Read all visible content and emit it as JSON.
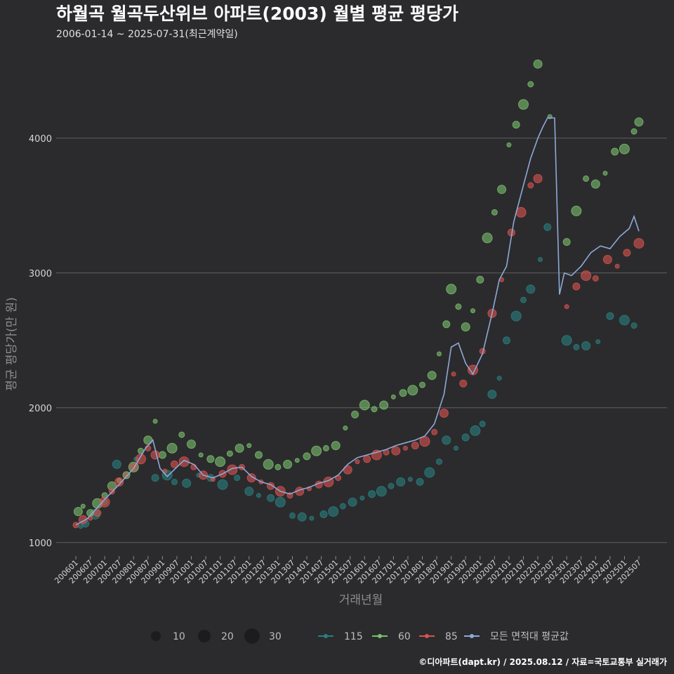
{
  "chart_data": {
    "type": "scatter",
    "title": "하월곡 월곡두산위브 아파트(2003) 월별 평균 평당가",
    "subtitle": "2006-01-14 ~ 2025-07-31(최근계약일)",
    "xlabel": "거래년월",
    "ylabel": "평균 평당가(만 원)",
    "caption": "©디아파트(dapt.kr) / 2025.08.12 / 자료=국토교통부 실거래가",
    "ylim": [
      900,
      4650
    ],
    "y_ticks": [
      1000,
      2000,
      3000,
      4000
    ],
    "x_range": [
      "2006-01",
      "2025-07"
    ],
    "x_tick_labels": [
      "200601",
      "200607",
      "200701",
      "200707",
      "200801",
      "200807",
      "200901",
      "200907",
      "201001",
      "201007",
      "201101",
      "201107",
      "201201",
      "201207",
      "201301",
      "201307",
      "201401",
      "201407",
      "201501",
      "201507",
      "201601",
      "201607",
      "201701",
      "201707",
      "201801",
      "201807",
      "201901",
      "201907",
      "202001",
      "202007",
      "202101",
      "202107",
      "202201",
      "202207",
      "202301",
      "202307",
      "202401",
      "202407",
      "202501",
      "202507"
    ],
    "grid": "horizontal",
    "size_legend": {
      "values": [
        10,
        20,
        30
      ]
    },
    "legend_placement": "bottom",
    "series": [
      {
        "name": "115",
        "color": "#2a7f7f",
        "points": [
          [
            "2006-03",
            1120
          ],
          [
            "2006-05",
            1140
          ],
          [
            "2006-09",
            1210
          ],
          [
            "2007-01",
            1300
          ],
          [
            "2007-06",
            1580
          ],
          [
            "2008-02",
            1620
          ],
          [
            "2008-10",
            1480
          ],
          [
            "2009-03",
            1500
          ],
          [
            "2009-06",
            1450
          ],
          [
            "2009-11",
            1440
          ],
          [
            "2010-04",
            1500
          ],
          [
            "2010-09",
            1480
          ],
          [
            "2011-02",
            1430
          ],
          [
            "2011-08",
            1480
          ],
          [
            "2012-01",
            1380
          ],
          [
            "2012-05",
            1350
          ],
          [
            "2012-10",
            1330
          ],
          [
            "2013-02",
            1300
          ],
          [
            "2013-07",
            1200
          ],
          [
            "2013-11",
            1190
          ],
          [
            "2014-03",
            1180
          ],
          [
            "2014-08",
            1210
          ],
          [
            "2014-12",
            1230
          ],
          [
            "2015-04",
            1270
          ],
          [
            "2015-08",
            1300
          ],
          [
            "2015-12",
            1330
          ],
          [
            "2016-04",
            1360
          ],
          [
            "2016-08",
            1380
          ],
          [
            "2016-12",
            1420
          ],
          [
            "2017-04",
            1450
          ],
          [
            "2017-08",
            1470
          ],
          [
            "2017-12",
            1450
          ],
          [
            "2018-04",
            1520
          ],
          [
            "2018-08",
            1600
          ],
          [
            "2018-11",
            1760
          ],
          [
            "2019-03",
            1700
          ],
          [
            "2019-07",
            1780
          ],
          [
            "2019-11",
            1830
          ],
          [
            "2020-02",
            1880
          ],
          [
            "2020-06",
            2100
          ],
          [
            "2020-09",
            2220
          ],
          [
            "2020-12",
            2500
          ],
          [
            "2021-04",
            2680
          ],
          [
            "2021-07",
            2800
          ],
          [
            "2021-10",
            2880
          ],
          [
            "2022-02",
            3100
          ],
          [
            "2022-05",
            3340
          ],
          [
            "2023-01",
            2500
          ],
          [
            "2023-05",
            2450
          ],
          [
            "2023-09",
            2460
          ],
          [
            "2024-02",
            2490
          ],
          [
            "2024-07",
            2680
          ],
          [
            "2025-01",
            2650
          ],
          [
            "2025-05",
            2610
          ]
        ]
      },
      {
        "name": "60",
        "color": "#7cc06e",
        "points": [
          [
            "2006-02",
            1230
          ],
          [
            "2006-04",
            1270
          ],
          [
            "2006-07",
            1220
          ],
          [
            "2006-10",
            1290
          ],
          [
            "2007-01",
            1350
          ],
          [
            "2007-04",
            1420
          ],
          [
            "2007-07",
            1460
          ],
          [
            "2007-10",
            1500
          ],
          [
            "2008-01",
            1560
          ],
          [
            "2008-04",
            1680
          ],
          [
            "2008-07",
            1760
          ],
          [
            "2008-10",
            1900
          ],
          [
            "2009-01",
            1650
          ],
          [
            "2009-05",
            1700
          ],
          [
            "2009-09",
            1800
          ],
          [
            "2010-01",
            1730
          ],
          [
            "2010-05",
            1650
          ],
          [
            "2010-09",
            1620
          ],
          [
            "2011-01",
            1600
          ],
          [
            "2011-05",
            1660
          ],
          [
            "2011-09",
            1700
          ],
          [
            "2012-01",
            1720
          ],
          [
            "2012-05",
            1650
          ],
          [
            "2012-09",
            1580
          ],
          [
            "2013-01",
            1560
          ],
          [
            "2013-05",
            1580
          ],
          [
            "2013-09",
            1610
          ],
          [
            "2014-01",
            1640
          ],
          [
            "2014-05",
            1680
          ],
          [
            "2014-09",
            1700
          ],
          [
            "2015-01",
            1720
          ],
          [
            "2015-05",
            1850
          ],
          [
            "2015-09",
            1950
          ],
          [
            "2016-01",
            2020
          ],
          [
            "2016-05",
            1990
          ],
          [
            "2016-09",
            2020
          ],
          [
            "2017-01",
            2080
          ],
          [
            "2017-05",
            2110
          ],
          [
            "2017-09",
            2130
          ],
          [
            "2018-01",
            2170
          ],
          [
            "2018-05",
            2240
          ],
          [
            "2018-08",
            2400
          ],
          [
            "2018-11",
            2620
          ],
          [
            "2019-01",
            2880
          ],
          [
            "2019-04",
            2750
          ],
          [
            "2019-07",
            2600
          ],
          [
            "2019-10",
            2720
          ],
          [
            "2020-01",
            2950
          ],
          [
            "2020-04",
            3260
          ],
          [
            "2020-07",
            3450
          ],
          [
            "2020-10",
            3620
          ],
          [
            "2021-01",
            3950
          ],
          [
            "2021-04",
            4100
          ],
          [
            "2021-07",
            4250
          ],
          [
            "2021-10",
            4400
          ],
          [
            "2022-01",
            4550
          ],
          [
            "2022-06",
            4160
          ],
          [
            "2023-01",
            3230
          ],
          [
            "2023-05",
            3460
          ],
          [
            "2023-09",
            3700
          ],
          [
            "2024-01",
            3660
          ],
          [
            "2024-05",
            3740
          ],
          [
            "2024-09",
            3900
          ],
          [
            "2025-01",
            3920
          ],
          [
            "2025-05",
            4050
          ],
          [
            "2025-07",
            4120
          ]
        ]
      },
      {
        "name": "85",
        "color": "#d9534f",
        "points": [
          [
            "2006-01",
            1130
          ],
          [
            "2006-04",
            1170
          ],
          [
            "2006-07",
            1180
          ],
          [
            "2006-10",
            1220
          ],
          [
            "2007-01",
            1300
          ],
          [
            "2007-04",
            1380
          ],
          [
            "2007-07",
            1450
          ],
          [
            "2007-10",
            1500
          ],
          [
            "2008-01",
            1560
          ],
          [
            "2008-04",
            1620
          ],
          [
            "2008-07",
            1700
          ],
          [
            "2008-10",
            1650
          ],
          [
            "2009-02",
            1530
          ],
          [
            "2009-06",
            1580
          ],
          [
            "2009-10",
            1600
          ],
          [
            "2010-02",
            1560
          ],
          [
            "2010-06",
            1500
          ],
          [
            "2010-10",
            1470
          ],
          [
            "2011-02",
            1510
          ],
          [
            "2011-06",
            1540
          ],
          [
            "2011-10",
            1560
          ],
          [
            "2012-02",
            1480
          ],
          [
            "2012-06",
            1450
          ],
          [
            "2012-10",
            1420
          ],
          [
            "2013-02",
            1380
          ],
          [
            "2013-06",
            1350
          ],
          [
            "2013-10",
            1380
          ],
          [
            "2014-02",
            1400
          ],
          [
            "2014-06",
            1430
          ],
          [
            "2014-10",
            1450
          ],
          [
            "2015-02",
            1480
          ],
          [
            "2015-06",
            1540
          ],
          [
            "2015-10",
            1600
          ],
          [
            "2016-02",
            1620
          ],
          [
            "2016-06",
            1650
          ],
          [
            "2016-10",
            1670
          ],
          [
            "2017-02",
            1680
          ],
          [
            "2017-06",
            1700
          ],
          [
            "2017-10",
            1720
          ],
          [
            "2018-02",
            1750
          ],
          [
            "2018-06",
            1820
          ],
          [
            "2018-10",
            1960
          ],
          [
            "2019-02",
            2250
          ],
          [
            "2019-06",
            2180
          ],
          [
            "2019-10",
            2280
          ],
          [
            "2020-02",
            2420
          ],
          [
            "2020-06",
            2700
          ],
          [
            "2020-10",
            2950
          ],
          [
            "2021-02",
            3300
          ],
          [
            "2021-06",
            3450
          ],
          [
            "2021-10",
            3650
          ],
          [
            "2022-01",
            3700
          ],
          [
            "2023-01",
            2750
          ],
          [
            "2023-05",
            2900
          ],
          [
            "2023-09",
            2980
          ],
          [
            "2024-01",
            2960
          ],
          [
            "2024-06",
            3100
          ],
          [
            "2024-10",
            3050
          ],
          [
            "2025-02",
            3150
          ],
          [
            "2025-07",
            3220
          ]
        ]
      },
      {
        "name": "모든 면적대 평균값",
        "color": "#8fa8d8",
        "points": [
          [
            "2006-01",
            1130
          ],
          [
            "2006-06",
            1180
          ],
          [
            "2007-01",
            1320
          ],
          [
            "2007-07",
            1430
          ],
          [
            "2008-01",
            1550
          ],
          [
            "2008-06",
            1700
          ],
          [
            "2008-09",
            1760
          ],
          [
            "2008-12",
            1550
          ],
          [
            "2009-03",
            1490
          ],
          [
            "2009-07",
            1560
          ],
          [
            "2009-10",
            1610
          ],
          [
            "2010-02",
            1580
          ],
          [
            "2010-06",
            1500
          ],
          [
            "2010-10",
            1480
          ],
          [
            "2011-02",
            1510
          ],
          [
            "2011-06",
            1550
          ],
          [
            "2011-10",
            1560
          ],
          [
            "2012-02",
            1490
          ],
          [
            "2012-06",
            1450
          ],
          [
            "2012-10",
            1430
          ],
          [
            "2013-02",
            1380
          ],
          [
            "2013-06",
            1360
          ],
          [
            "2013-10",
            1390
          ],
          [
            "2014-02",
            1410
          ],
          [
            "2014-06",
            1440
          ],
          [
            "2014-10",
            1460
          ],
          [
            "2015-02",
            1500
          ],
          [
            "2015-06",
            1580
          ],
          [
            "2015-10",
            1630
          ],
          [
            "2016-02",
            1650
          ],
          [
            "2016-06",
            1670
          ],
          [
            "2016-10",
            1690
          ],
          [
            "2017-02",
            1720
          ],
          [
            "2017-06",
            1740
          ],
          [
            "2017-10",
            1760
          ],
          [
            "2018-02",
            1790
          ],
          [
            "2018-06",
            1880
          ],
          [
            "2018-10",
            2100
          ],
          [
            "2019-01",
            2450
          ],
          [
            "2019-04",
            2480
          ],
          [
            "2019-07",
            2330
          ],
          [
            "2019-10",
            2250
          ],
          [
            "2020-02",
            2400
          ],
          [
            "2020-06",
            2700
          ],
          [
            "2020-09",
            2950
          ],
          [
            "2020-12",
            3050
          ],
          [
            "2021-03",
            3380
          ],
          [
            "2021-07",
            3650
          ],
          [
            "2021-10",
            3850
          ],
          [
            "2022-01",
            4000
          ],
          [
            "2022-03",
            4080
          ],
          [
            "2022-05",
            4150
          ],
          [
            "2022-08",
            4150
          ],
          [
            "2022-10",
            2840
          ],
          [
            "2022-12",
            3000
          ],
          [
            "2023-03",
            2980
          ],
          [
            "2023-07",
            3050
          ],
          [
            "2023-11",
            3150
          ],
          [
            "2024-03",
            3200
          ],
          [
            "2024-07",
            3180
          ],
          [
            "2024-11",
            3270
          ],
          [
            "2025-03",
            3330
          ],
          [
            "2025-05",
            3420
          ],
          [
            "2025-07",
            3310
          ]
        ]
      }
    ]
  }
}
